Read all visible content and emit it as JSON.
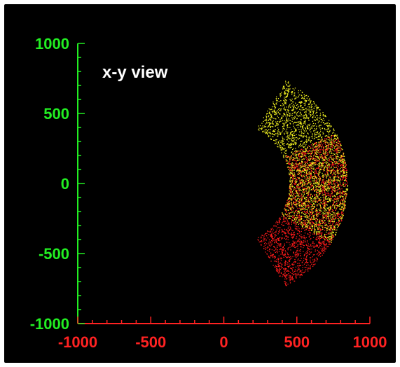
{
  "chart_data": {
    "type": "scatter",
    "title": "x-y view",
    "xlabel": "",
    "ylabel": "",
    "xlim": [
      -1000,
      1000
    ],
    "ylim": [
      -1000,
      1000
    ],
    "x_ticks": [
      -1000,
      -500,
      0,
      500,
      1000
    ],
    "y_ticks": [
      1000,
      500,
      0,
      -500,
      -1000
    ],
    "x_tick_labels": [
      "-1000",
      "-500",
      "0",
      "500",
      "1000"
    ],
    "y_tick_labels": [
      "1000",
      "500",
      "0",
      "-500",
      "-1000"
    ],
    "minor_tick_step": 100,
    "grid": false,
    "legend": "none",
    "series": [
      {
        "color": "#ff1a1a",
        "description_points": "annular sector centered on origin, inner radius ~450, outer radius ~850, angles ~-60° to ~25°",
        "r_range": [
          450,
          850
        ],
        "angle_range_deg": [
          -60,
          25
        ]
      },
      {
        "color": "#f0f020",
        "r_range": [
          450,
          850
        ],
        "angle_range_deg": [
          -30,
          60
        ]
      }
    ],
    "colors": {
      "background": "#000000",
      "y_axis": "#22ee22",
      "x_axis": "#ff2222",
      "title": "#ffffff"
    }
  }
}
